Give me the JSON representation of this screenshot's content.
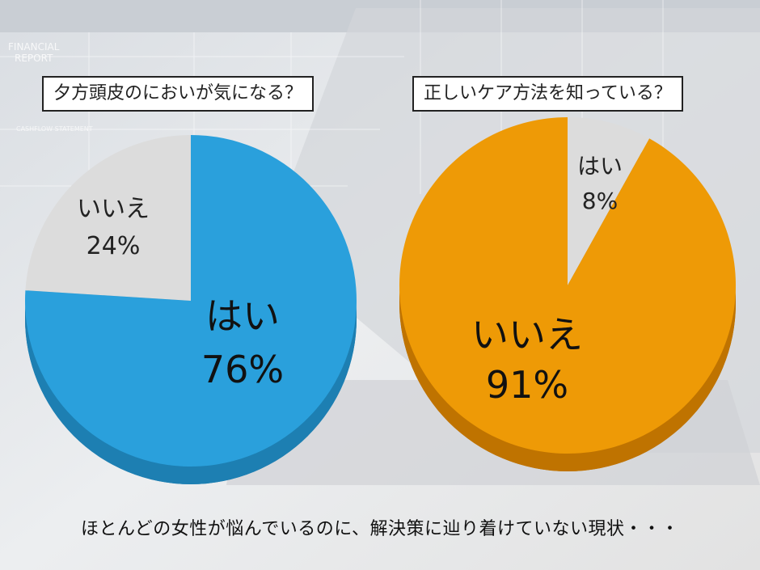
{
  "caption": "ほとんどの女性が悩んでいるのに、解決策に辿り着けていない現状・・・",
  "background_text": {
    "financial": "FINANCIAL",
    "report": "REPORT",
    "cashflow": "CASHFLOW STATEMENT"
  },
  "colors": {
    "blue": "#2aa0dc",
    "blue_side": "#1d7fb2",
    "orange": "#ee9a06",
    "orange_side": "#bf7300",
    "gray": "#dcdcdc",
    "gray_side": "#b5b5b5"
  },
  "chart_data": [
    {
      "type": "pie",
      "title": "夕方頭皮のにおいが気になる？",
      "slices": [
        {
          "label": "はい",
          "value": 76,
          "value_label": "76%"
        },
        {
          "label": "いいえ",
          "value": 24,
          "value_label": "24%"
        }
      ]
    },
    {
      "type": "pie",
      "title": "正しいケア方法を知っている？",
      "slices": [
        {
          "label": "はい",
          "value": 8,
          "value_label": "8%"
        },
        {
          "label": "いいえ",
          "value": 91,
          "value_label": "91%"
        }
      ]
    }
  ]
}
